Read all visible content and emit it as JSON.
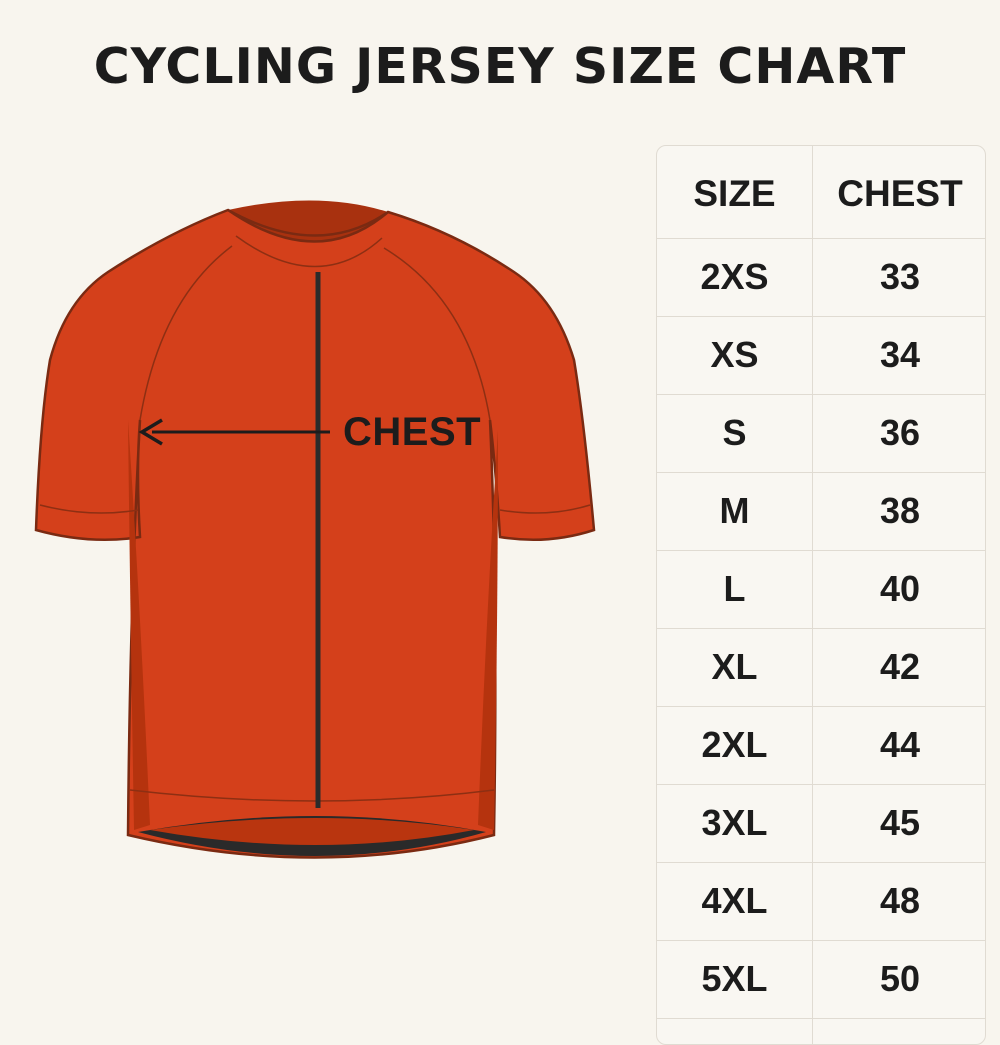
{
  "title": "CYCLING JERSEY SIZE CHART",
  "figure": {
    "subject": "jersey-illustration",
    "chest_label": "CHEST",
    "colors": {
      "jersey": "#d4401b",
      "jersey_shade": "#b9350f",
      "outline": "#7a2a12",
      "zipper": "#2b2b2b",
      "waistband": "#2a2a2a"
    },
    "icons": [
      "jersey-icon",
      "arrow-left-icon"
    ]
  },
  "table": {
    "headers": {
      "size": "SIZE",
      "chest": "CHEST"
    },
    "rows": [
      {
        "size": "2XS",
        "chest": "33"
      },
      {
        "size": "XS",
        "chest": "34"
      },
      {
        "size": "S",
        "chest": "36"
      },
      {
        "size": "M",
        "chest": "38"
      },
      {
        "size": "L",
        "chest": "40"
      },
      {
        "size": "XL",
        "chest": "42"
      },
      {
        "size": "2XL",
        "chest": "44"
      },
      {
        "size": "3XL",
        "chest": "45"
      },
      {
        "size": "4XL",
        "chest": "48"
      },
      {
        "size": "5XL",
        "chest": "50"
      }
    ]
  }
}
